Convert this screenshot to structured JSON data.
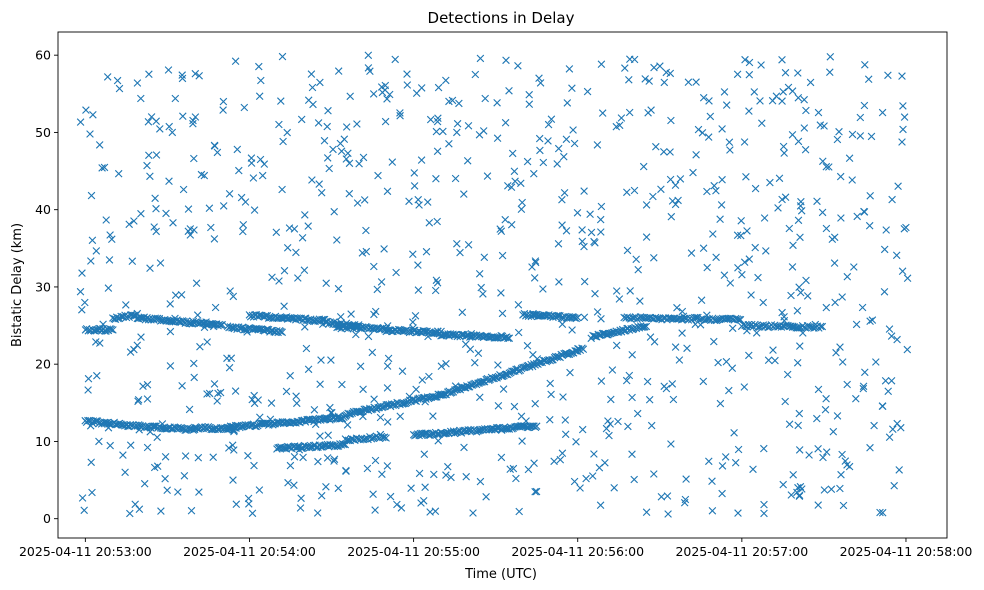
{
  "chart_data": {
    "type": "scatter",
    "title": "Detections in Delay",
    "xlabel": "Time (UTC)",
    "ylabel": "Bistatic Delay (km)",
    "x_unit": "seconds since 2025-04-11 20:53:00",
    "xlim": [
      -10,
      315
    ],
    "ylim": [
      -2.5,
      63
    ],
    "x_ticks": [
      {
        "value": 0,
        "label": "2025-04-11 20:53:00"
      },
      {
        "value": 60,
        "label": "2025-04-11 20:54:00"
      },
      {
        "value": 120,
        "label": "2025-04-11 20:55:00"
      },
      {
        "value": 180,
        "label": "2025-04-11 20:56:00"
      },
      {
        "value": 240,
        "label": "2025-04-11 20:57:00"
      },
      {
        "value": 300,
        "label": "2025-04-11 20:58:00"
      }
    ],
    "y_ticks": [
      {
        "value": 0,
        "label": "0"
      },
      {
        "value": 10,
        "label": "10"
      },
      {
        "value": 20,
        "label": "20"
      },
      {
        "value": 30,
        "label": "30"
      },
      {
        "value": 40,
        "label": "40"
      },
      {
        "value": 50,
        "label": "50"
      },
      {
        "value": 60,
        "label": "60"
      }
    ],
    "grid": false,
    "marker": "x",
    "color": "#1f77b4",
    "series": [
      {
        "name": "",
        "tracks": [
          {
            "x_start": 0,
            "x_end": 10,
            "y_start": 24.5,
            "y_end": 24.4,
            "step": 0.5
          },
          {
            "x_start": 10,
            "x_end": 19,
            "y_start": 25.9,
            "y_end": 26.4,
            "step": 0.5
          },
          {
            "x_start": 19,
            "x_end": 50,
            "y_start": 26.0,
            "y_end": 25.0,
            "step": 0.5
          },
          {
            "x_start": 52,
            "x_end": 72,
            "y_start": 24.8,
            "y_end": 24.2,
            "step": 0.5
          },
          {
            "x_start": 60,
            "x_end": 88,
            "y_start": 26.3,
            "y_end": 25.6,
            "step": 0.5
          },
          {
            "x_start": 88,
            "x_end": 100,
            "y_start": 25.4,
            "y_end": 25.0,
            "step": 0.5
          },
          {
            "x_start": 92,
            "x_end": 110,
            "y_start": 24.8,
            "y_end": 24.6,
            "step": 0.5
          },
          {
            "x_start": 110,
            "x_end": 130,
            "y_start": 24.4,
            "y_end": 24.1,
            "step": 0.5
          },
          {
            "x_start": 130,
            "x_end": 155,
            "y_start": 23.8,
            "y_end": 23.5,
            "step": 0.5
          },
          {
            "x_start": 160,
            "x_end": 180,
            "y_start": 26.4,
            "y_end": 26.0,
            "step": 0.5
          },
          {
            "x_start": 185,
            "x_end": 205,
            "y_start": 23.5,
            "y_end": 25.0,
            "step": 0.5
          },
          {
            "x_start": 197,
            "x_end": 240,
            "y_start": 26.0,
            "y_end": 25.8,
            "step": 0.6
          },
          {
            "x_start": 240,
            "x_end": 270,
            "y_start": 25.0,
            "y_end": 24.8,
            "step": 0.6
          },
          {
            "x_start": 0,
            "x_end": 20,
            "y_start": 12.6,
            "y_end": 12.0,
            "step": 0.5
          },
          {
            "x_start": 20,
            "x_end": 40,
            "y_start": 12.0,
            "y_end": 11.5,
            "step": 0.5
          },
          {
            "x_start": 40,
            "x_end": 55,
            "y_start": 11.8,
            "y_end": 11.6,
            "step": 0.5
          },
          {
            "x_start": 52,
            "x_end": 95,
            "y_start": 11.8,
            "y_end": 13.1,
            "step": 0.5
          },
          {
            "x_start": 95,
            "x_end": 130,
            "y_start": 13.5,
            "y_end": 16.0,
            "step": 0.5
          },
          {
            "x_start": 130,
            "x_end": 182,
            "y_start": 16.0,
            "y_end": 22.0,
            "step": 0.5
          },
          {
            "x_start": 70,
            "x_end": 95,
            "y_start": 9.1,
            "y_end": 9.6,
            "step": 0.5
          },
          {
            "x_start": 120,
            "x_end": 165,
            "y_start": 10.8,
            "y_end": 12.0,
            "step": 0.5
          },
          {
            "x_start": 95,
            "x_end": 110,
            "y_start": 10.2,
            "y_end": 10.6,
            "step": 0.6
          }
        ],
        "noise": {
          "count": 900,
          "x_range": [
            -2,
            302
          ],
          "y_range": [
            0.5,
            60
          ]
        }
      }
    ]
  }
}
